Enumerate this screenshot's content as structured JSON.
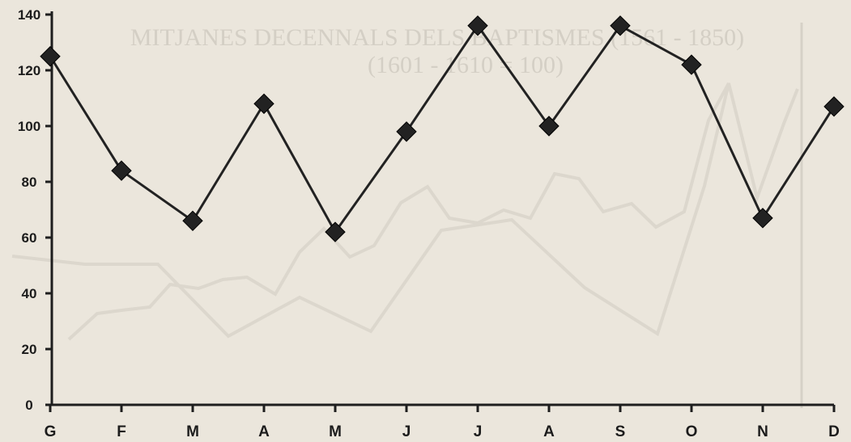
{
  "chart_data": {
    "type": "line",
    "title": "",
    "xlabel": "",
    "ylabel": "",
    "categories": [
      "G",
      "F",
      "M",
      "A",
      "M",
      "J",
      "J",
      "A",
      "S",
      "O",
      "N",
      "D"
    ],
    "series": [
      {
        "values": [
          125,
          84,
          66,
          108,
          62,
          98,
          136,
          100,
          136,
          122,
          67,
          107
        ]
      }
    ],
    "ylim": [
      0,
      140
    ],
    "yticks": [
      0,
      20,
      40,
      60,
      80,
      100,
      120,
      140
    ],
    "grid": false,
    "legend": "none",
    "line_color": "#222222",
    "marker": "diamond"
  },
  "background_text": {
    "line1": "MITJANES DECENNALS DELS BAPTISMES (1561 - 1850)",
    "line2": "(1601 - 1610 = 100)"
  }
}
